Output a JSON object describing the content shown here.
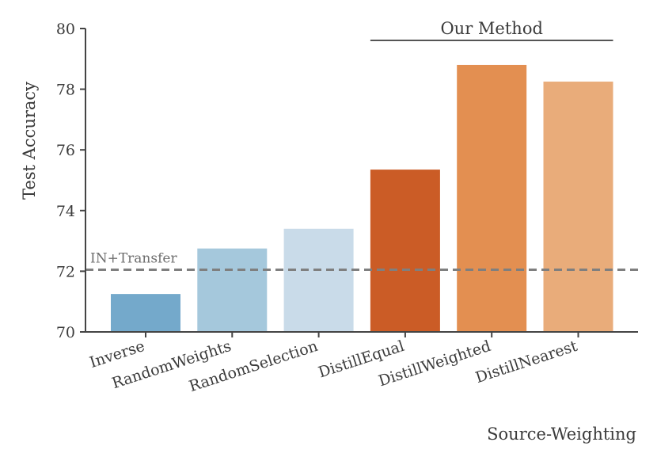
{
  "chart_data": {
    "type": "bar",
    "categories": [
      "Inverse",
      "RandomWeights",
      "RandomSelection",
      "DistillEqual",
      "DistillWeighted",
      "DistillNearest"
    ],
    "values": [
      71.25,
      72.75,
      73.4,
      75.35,
      78.8,
      78.25
    ],
    "colors": [
      "#74a9cb",
      "#a5c8dc",
      "#c9dbe9",
      "#cb5c26",
      "#e38f51",
      "#e9ac7a"
    ],
    "xlabel": "Source-Weighting",
    "ylabel": "Test Accuracy",
    "ylim": [
      70,
      80
    ],
    "yticks": [
      70,
      72,
      74,
      76,
      78,
      80
    ],
    "grid": false,
    "reference_line": {
      "label": "IN+Transfer",
      "value": 72.05,
      "style": "dashed",
      "color": "#7f7f7f"
    },
    "group_annotation": {
      "label": "Our Method",
      "categories": [
        "DistillEqual",
        "DistillWeighted",
        "DistillNearest"
      ]
    }
  }
}
